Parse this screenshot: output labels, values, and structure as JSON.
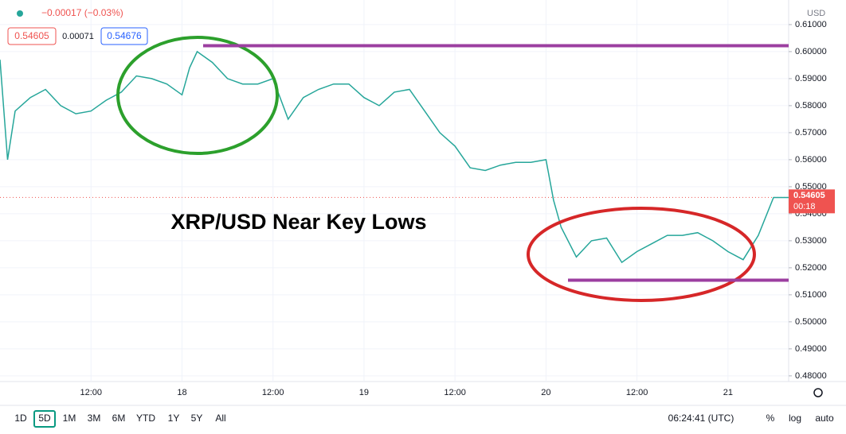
{
  "chart_data": {
    "type": "line",
    "title": "XRP/USD Near Key Lows",
    "x": [
      0,
      1,
      2,
      4,
      6,
      8,
      10,
      12,
      14,
      16,
      18,
      20,
      22,
      24,
      25,
      26,
      28,
      30,
      32,
      34,
      36,
      38,
      40,
      42,
      44,
      46,
      48,
      50,
      52,
      54,
      56,
      58,
      60,
      62,
      64,
      66,
      68,
      70,
      72,
      73,
      74,
      76,
      78,
      80,
      82,
      84,
      86,
      88,
      90,
      92,
      94,
      96,
      98,
      100,
      102,
      104
    ],
    "series": [
      {
        "color": "#26a69a",
        "values": [
          0.597,
          0.56,
          0.578,
          0.583,
          0.586,
          0.58,
          0.577,
          0.578,
          0.582,
          0.585,
          0.591,
          0.59,
          0.588,
          0.584,
          0.594,
          0.6,
          0.596,
          0.59,
          0.588,
          0.588,
          0.59,
          0.575,
          0.583,
          0.586,
          0.588,
          0.588,
          0.583,
          0.58,
          0.585,
          0.586,
          0.578,
          0.57,
          0.565,
          0.557,
          0.556,
          0.558,
          0.559,
          0.559,
          0.56,
          0.545,
          0.535,
          0.524,
          0.53,
          0.531,
          0.522,
          0.526,
          0.529,
          0.532,
          0.532,
          0.533,
          0.53,
          0.526,
          0.523,
          0.532,
          0.546,
          0.546
        ]
      }
    ],
    "xlim": [
      0,
      104
    ],
    "xticks": [
      {
        "value": 12,
        "label": "12:00"
      },
      {
        "value": 24,
        "label": "18"
      },
      {
        "value": 36,
        "label": "12:00"
      },
      {
        "value": 48,
        "label": "19"
      },
      {
        "value": 60,
        "label": "12:00"
      },
      {
        "value": 72,
        "label": "20"
      },
      {
        "value": 84,
        "label": "12:00"
      },
      {
        "value": 96,
        "label": "21"
      }
    ],
    "ylim": [
      0.4779,
      0.6191
    ],
    "yticks": [
      {
        "value": 0.48,
        "label": "0.48000"
      },
      {
        "value": 0.49,
        "label": "0.49000"
      },
      {
        "value": 0.5,
        "label": "0.50000"
      },
      {
        "value": 0.51,
        "label": "0.51000"
      },
      {
        "value": 0.52,
        "label": "0.52000"
      },
      {
        "value": 0.53,
        "label": "0.53000"
      },
      {
        "value": 0.54,
        "label": "0.54000"
      },
      {
        "value": 0.55,
        "label": "0.55000"
      },
      {
        "value": 0.56,
        "label": "0.56000"
      },
      {
        "value": 0.57,
        "label": "0.57000"
      },
      {
        "value": 0.58,
        "label": "0.58000"
      },
      {
        "value": 0.59,
        "label": "0.59000"
      },
      {
        "value": 0.6,
        "label": "0.60000"
      },
      {
        "value": 0.61,
        "label": "0.61000"
      }
    ],
    "hlines": [
      {
        "value": 0.6022,
        "color": "#9c3fa0"
      },
      {
        "value": 0.5154,
        "color": "#9c3fa0"
      }
    ],
    "last_price": 0.54605,
    "countdown": "00:18",
    "currency": "USD"
  },
  "ui": {
    "change": "−0.00017 (−0.03%)",
    "bid": "0.54605",
    "spread": "0.00071",
    "ask": "0.54676",
    "ranges": [
      "1D",
      "5D",
      "1M",
      "3M",
      "6M",
      "YTD",
      "1Y",
      "5Y",
      "All"
    ],
    "clock": "06:24:41 (UTC)",
    "percent": "%",
    "log": "log",
    "auto": "auto"
  }
}
